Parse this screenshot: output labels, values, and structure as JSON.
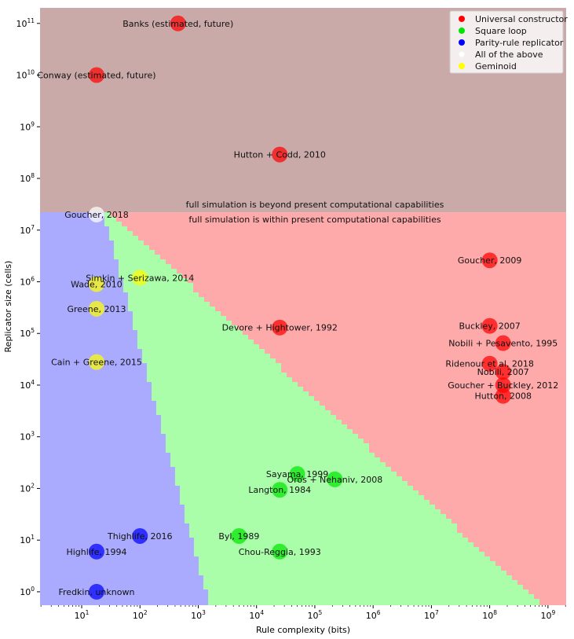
{
  "chart_data": {
    "type": "scatter",
    "title": "",
    "xlabel": "Rule complexity (bits)",
    "ylabel": "Replicator size (cells)",
    "xscale": "log",
    "yscale": "log",
    "xlim": [
      1.93,
      2050000000.0
    ],
    "ylim": [
      0.55,
      200000000000.0
    ],
    "x_ticks": [
      {
        "value": 10.0,
        "base": "10",
        "exp": "1"
      },
      {
        "value": 100.0,
        "base": "10",
        "exp": "2"
      },
      {
        "value": 1000.0,
        "base": "10",
        "exp": "3"
      },
      {
        "value": 10000.0,
        "base": "10",
        "exp": "4"
      },
      {
        "value": 100000.0,
        "base": "10",
        "exp": "5"
      },
      {
        "value": 1000000.0,
        "base": "10",
        "exp": "6"
      },
      {
        "value": 10000000.0,
        "base": "10",
        "exp": "7"
      },
      {
        "value": 100000000.0,
        "base": "10",
        "exp": "8"
      },
      {
        "value": 1000000000.0,
        "base": "10",
        "exp": "9"
      }
    ],
    "y_ticks": [
      {
        "value": 1.0,
        "base": "10",
        "exp": "0"
      },
      {
        "value": 10.0,
        "base": "10",
        "exp": "1"
      },
      {
        "value": 100.0,
        "base": "10",
        "exp": "2"
      },
      {
        "value": 1000.0,
        "base": "10",
        "exp": "3"
      },
      {
        "value": 10000.0,
        "base": "10",
        "exp": "4"
      },
      {
        "value": 100000.0,
        "base": "10",
        "exp": "5"
      },
      {
        "value": 1000000.0,
        "base": "10",
        "exp": "6"
      },
      {
        "value": 10000000.0,
        "base": "10",
        "exp": "7"
      },
      {
        "value": 100000000.0,
        "base": "10",
        "exp": "8"
      },
      {
        "value": 1000000000.0,
        "base": "10",
        "exp": "9"
      },
      {
        "value": 10000000000.0,
        "base": "10",
        "exp": "10"
      },
      {
        "value": 100000000000.0,
        "base": "10",
        "exp": "11"
      }
    ],
    "grid": false,
    "legend_position": "top-right",
    "categories_legend": [
      {
        "name": "Universal constructor",
        "color": "#ff0000"
      },
      {
        "name": "Square loop",
        "color": "#00e600"
      },
      {
        "name": "Parity-rule replicator",
        "color": "#0000ff"
      },
      {
        "name": "All of the above",
        "color": "#ffffff"
      },
      {
        "name": "Geminoid",
        "color": "#ffff00"
      }
    ],
    "regions": {
      "feasibility_threshold_cells": 22000000.0,
      "beyond_label": "full simulation is beyond present computational capabilities",
      "within_label": "full simulation is within present computational capabilities",
      "colors": {
        "beyond": "#c9aaa9",
        "blue": "#aaaafe",
        "green": "#aafeaa",
        "red": "#fea9aa"
      },
      "blue_green_boundary": [
        [
          23,
          22000000.0
        ],
        [
          1500,
          0.55
        ]
      ],
      "green_red_boundary": [
        [
          30,
          22000000.0
        ],
        [
          750000000.0,
          0.55
        ]
      ]
    },
    "points": [
      {
        "label": "Banks (estimated, future)",
        "x": 450,
        "y": 100000000000.0,
        "category": "Universal constructor",
        "label_align": "center"
      },
      {
        "label": "Conway (estimated, future)",
        "x": 18,
        "y": 10000000000.0,
        "category": "Universal constructor",
        "label_align": "center"
      },
      {
        "label": "Hutton + Codd, 2010",
        "x": 25000,
        "y": 290000000.0,
        "category": "Universal constructor",
        "label_align": "center"
      },
      {
        "label": "Goucher, 2018",
        "x": 18,
        "y": 20000000.0,
        "category": "All of the above",
        "label_align": "center"
      },
      {
        "label": "Goucher, 2009",
        "x": 100000000.0,
        "y": 2600000.0,
        "category": "Universal constructor",
        "label_align": "center"
      },
      {
        "label": "Simkin + Serizawa, 2014",
        "x": 100,
        "y": 1200000.0,
        "category": "Geminoid",
        "label_align": "center"
      },
      {
        "label": "Wade, 2010",
        "x": 18,
        "y": 900000.0,
        "category": "Geminoid",
        "label_align": "center"
      },
      {
        "label": "Greene, 2013",
        "x": 18,
        "y": 300000.0,
        "category": "Geminoid",
        "label_align": "center"
      },
      {
        "label": "Devore + Hightower, 1992",
        "x": 25000,
        "y": 130000.0,
        "category": "Universal constructor",
        "label_align": "center"
      },
      {
        "label": "Buckley, 2007",
        "x": 100000000.0,
        "y": 140000.0,
        "category": "Universal constructor",
        "label_align": "center"
      },
      {
        "label": "Nobili + Pesavento, 1995",
        "x": 170000000.0,
        "y": 65000.0,
        "category": "Universal constructor",
        "label_align": "center"
      },
      {
        "label": "Cain + Greene, 2015",
        "x": 18,
        "y": 28000.0,
        "category": "Geminoid",
        "label_align": "center"
      },
      {
        "label": "Ridenour et al, 2018",
        "x": 100000000.0,
        "y": 26000.0,
        "category": "Universal constructor",
        "label_align": "center"
      },
      {
        "label": "Nobili, 2007",
        "x": 170000000.0,
        "y": 18000.0,
        "category": "Universal constructor",
        "label_align": "center"
      },
      {
        "label": "Goucher + Buckley, 2012",
        "x": 170000000.0,
        "y": 10000.0,
        "category": "Universal constructor",
        "label_align": "center"
      },
      {
        "label": "Hutton, 2008",
        "x": 170000000.0,
        "y": 6200.0,
        "category": "Universal constructor",
        "label_align": "center"
      },
      {
        "label": "Sayama, 1999",
        "x": 50000,
        "y": 190,
        "category": "Square loop",
        "label_align": "center"
      },
      {
        "label": "Oros + Nehaniv, 2008",
        "x": 220000.0,
        "y": 150,
        "category": "Square loop",
        "label_align": "center"
      },
      {
        "label": "Langton, 1984",
        "x": 25000,
        "y": 94,
        "category": "Square loop",
        "label_align": "center"
      },
      {
        "label": "Thighlife, 2016",
        "x": 100,
        "y": 12,
        "category": "Parity-rule replicator",
        "label_align": "center"
      },
      {
        "label": "Byl, 1989",
        "x": 5000,
        "y": 12,
        "category": "Square loop",
        "label_align": "center"
      },
      {
        "label": "Highlife, 1994",
        "x": 18,
        "y": 6,
        "category": "Parity-rule replicator",
        "label_align": "center"
      },
      {
        "label": "Chou-Reggia, 1993",
        "x": 25000,
        "y": 6,
        "category": "Square loop",
        "label_align": "center"
      },
      {
        "label": "Fredkin, unknown",
        "x": 18,
        "y": 1,
        "category": "Parity-rule replicator",
        "label_align": "center"
      }
    ]
  }
}
